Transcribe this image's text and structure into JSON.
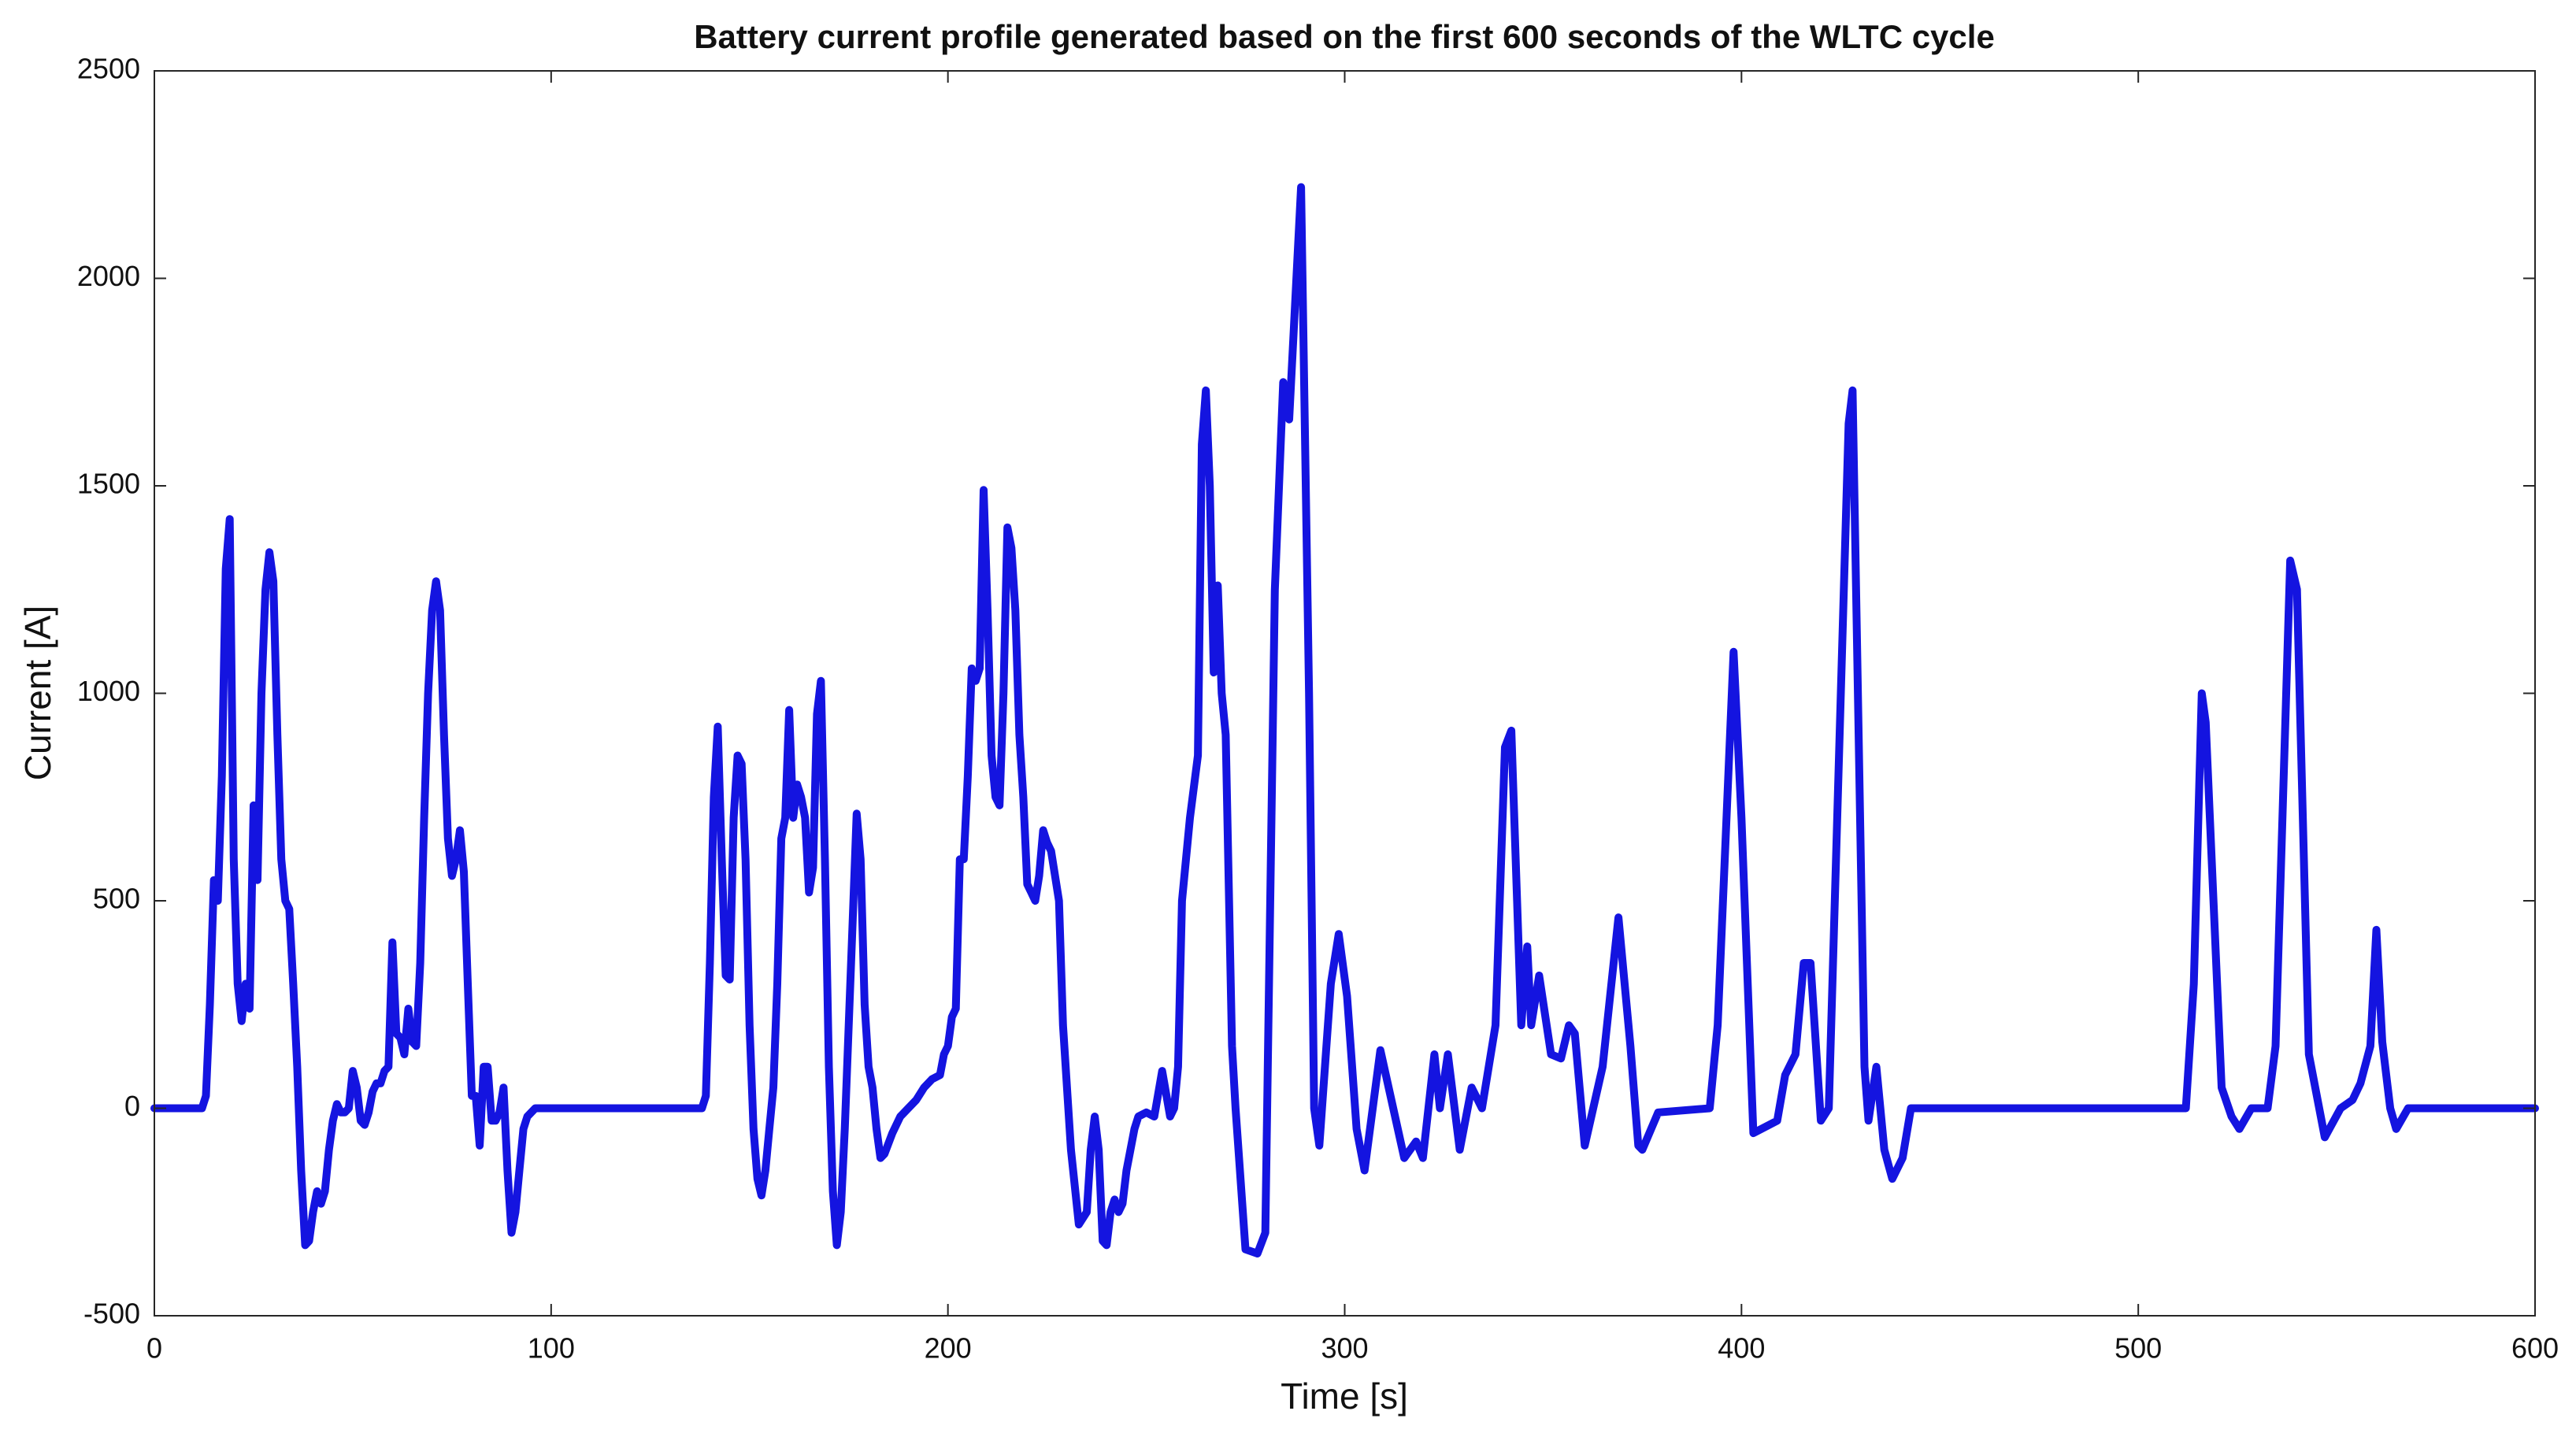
{
  "chart_data": {
    "type": "line",
    "title": "Battery current profile generated based on the first 600 seconds of the WLTC cycle",
    "x_label": "Time [s]",
    "y_label": "Current [A]",
    "x": [
      0,
      12,
      13,
      14,
      15,
      16,
      17,
      18,
      19,
      20,
      21,
      22,
      23,
      24,
      25,
      26,
      27,
      28,
      29,
      30,
      31,
      32,
      33,
      34,
      35,
      36,
      37,
      38,
      39,
      40,
      41,
      42,
      43,
      44,
      45,
      46,
      47,
      48,
      49,
      50,
      51,
      52,
      53,
      54,
      55,
      56,
      57,
      58,
      59,
      60,
      61,
      62,
      63,
      64,
      65,
      66,
      67,
      68,
      69,
      70,
      71,
      72,
      73,
      74,
      75,
      76,
      77,
      78,
      79,
      80,
      81,
      82,
      83,
      84,
      85,
      86,
      87,
      88,
      89,
      90,
      91,
      92,
      93,
      94,
      96,
      138,
      139,
      140,
      141,
      142,
      143,
      144,
      145,
      146,
      147,
      148,
      149,
      150,
      151,
      152,
      153,
      154,
      155,
      156,
      157,
      158,
      159,
      160,
      161,
      162,
      163,
      164,
      165,
      166,
      167,
      168,
      169,
      170,
      171,
      172,
      173,
      174,
      175,
      176,
      177,
      178,
      179,
      180,
      181,
      182,
      183,
      184,
      186,
      188,
      190,
      192,
      194,
      196,
      198,
      199,
      200,
      201,
      202,
      203,
      204,
      205,
      206,
      207,
      208,
      209,
      210,
      211,
      212,
      213,
      214,
      215,
      216,
      217,
      218,
      219,
      220,
      221,
      222,
      223,
      224,
      225,
      226,
      227,
      228,
      229,
      231,
      233,
      235,
      236,
      237,
      238,
      239,
      240,
      241,
      242,
      243,
      244,
      245,
      247,
      248,
      250,
      252,
      254,
      256,
      257,
      258,
      259,
      261,
      263,
      264,
      265,
      266,
      267,
      268,
      269,
      270,
      271.6,
      272.5,
      275,
      278,
      280,
      282.4,
      284.5,
      286,
      289,
      291,
      292.3,
      293.6,
      296.5,
      298.5,
      300.6,
      303,
      305,
      309,
      315,
      318,
      319.7,
      322.6,
      324,
      326,
      329,
      332,
      334.6,
      338,
      340.4,
      342,
      344.5,
      346,
      347,
      349,
      352,
      354.5,
      356.5,
      358,
      360.5,
      365,
      369,
      372,
      374,
      375,
      379,
      392,
      394,
      398,
      400,
      403,
      409,
      411,
      413.6,
      415.7,
      417.4,
      420,
      422,
      427,
      428,
      431,
      432,
      434,
      436,
      438,
      440.6,
      442.7,
      512,
      514,
      516,
      517,
      521,
      523.5,
      525.5,
      528.5,
      532.6,
      534.6,
      538.3,
      540,
      543,
      547,
      551,
      554,
      556,
      558.5,
      560,
      561.5,
      563.5,
      565,
      568,
      600
    ],
    "series": [
      {
        "color": "#1414e0",
        "values": [
          0,
          0,
          30,
          250,
          550,
          500,
          800,
          1300,
          1420,
          600,
          300,
          210,
          300,
          240,
          730,
          550,
          1000,
          1250,
          1340,
          1270,
          900,
          600,
          500,
          480,
          300,
          100,
          -150,
          -330,
          -320,
          -250,
          -200,
          -230,
          -200,
          -100,
          -30,
          10,
          -10,
          -10,
          0,
          90,
          50,
          -30,
          -40,
          -10,
          40,
          60,
          60,
          90,
          100,
          400,
          180,
          170,
          130,
          240,
          160,
          150,
          350,
          700,
          1000,
          1200,
          1270,
          1200,
          900,
          650,
          560,
          600,
          670,
          570,
          300,
          30,
          30,
          -90,
          100,
          100,
          -30,
          -30,
          -10,
          50,
          -150,
          -300,
          -250,
          -150,
          -50,
          -20,
          0,
          0,
          30,
          350,
          750,
          920,
          600,
          320,
          310,
          700,
          850,
          830,
          600,
          200,
          -50,
          -170,
          -210,
          -150,
          -50,
          50,
          300,
          650,
          700,
          960,
          700,
          780,
          750,
          700,
          520,
          580,
          950,
          1030,
          600,
          100,
          -200,
          -330,
          -250,
          -50,
          200,
          450,
          710,
          600,
          250,
          100,
          50,
          -50,
          -120,
          -110,
          -60,
          -20,
          0,
          20,
          50,
          70,
          80,
          130,
          150,
          220,
          240,
          600,
          600,
          800,
          1060,
          1030,
          1060,
          1490,
          1200,
          850,
          750,
          730,
          1000,
          1400,
          1350,
          1200,
          900,
          750,
          540,
          520,
          500,
          560,
          670,
          640,
          620,
          560,
          500,
          200,
          -100,
          -280,
          -250,
          -100,
          -20,
          -100,
          -320,
          -330,
          -250,
          -220,
          -250,
          -230,
          -150,
          -50,
          -20,
          -10,
          -20,
          90,
          -20,
          0,
          100,
          500,
          700,
          850,
          1600,
          1730,
          1500,
          1050,
          1260,
          1000,
          900,
          150,
          0,
          -340,
          -350,
          -300,
          1250,
          1750,
          1660,
          2220,
          1000,
          0,
          -90,
          300,
          420,
          270,
          -50,
          -150,
          140,
          -120,
          -80,
          -120,
          130,
          0,
          130,
          -100,
          50,
          0,
          200,
          870,
          910,
          200,
          390,
          200,
          320,
          130,
          120,
          200,
          180,
          -90,
          100,
          460,
          150,
          -90,
          -100,
          -10,
          0,
          200,
          1100,
          700,
          -60,
          -30,
          80,
          130,
          350,
          350,
          -30,
          0,
          1650,
          1730,
          100,
          -30,
          100,
          -100,
          -170,
          -120,
          0,
          0,
          300,
          1000,
          930,
          50,
          -20,
          -50,
          0,
          0,
          150,
          1320,
          1250,
          130,
          -70,
          0,
          20,
          60,
          150,
          430,
          160,
          0,
          -50,
          0,
          0
        ]
      }
    ],
    "xlim": [
      0,
      600
    ],
    "xticks": [
      0,
      100,
      200,
      300,
      400,
      500,
      600
    ],
    "ylim": [
      -500,
      2500
    ],
    "yticks": [
      -500,
      0,
      500,
      1000,
      1500,
      2000,
      2500
    ]
  }
}
